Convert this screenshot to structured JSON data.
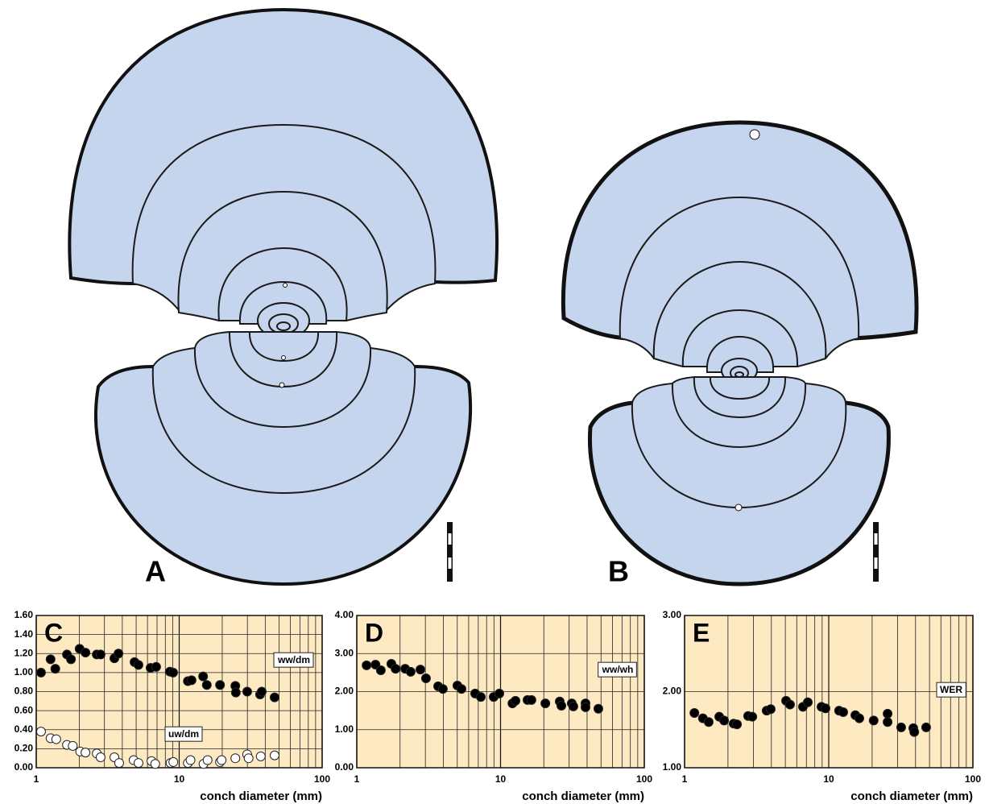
{
  "figure": {
    "panels": [
      {
        "label": "A"
      },
      {
        "label": "B"
      }
    ]
  },
  "chart_data": [
    {
      "type": "scatter",
      "panel_label": "C",
      "x_label": "conch diameter (mm)",
      "log_x": true,
      "grid": true,
      "xlim": [
        1,
        100
      ],
      "xticks": [
        1,
        10,
        100
      ],
      "ylim": [
        0,
        1.6
      ],
      "yticks": [
        {
          "value": 0,
          "label": "0.00"
        },
        {
          "value": 0.2,
          "label": "0.20"
        },
        {
          "value": 0.4,
          "label": "0.40"
        },
        {
          "value": 0.6,
          "label": "0.60"
        },
        {
          "value": 0.8,
          "label": "0.80"
        },
        {
          "value": 1,
          "label": "1.00"
        },
        {
          "value": 1.2,
          "label": "1.20"
        },
        {
          "value": 1.4,
          "label": "1.40"
        },
        {
          "value": 1.6,
          "label": "1.60"
        }
      ],
      "series": [
        {
          "name": "ww/dm",
          "color": "#000000",
          "x": [
            1.08,
            1.26,
            1.36,
            1.64,
            1.75,
            2.01,
            2.21,
            2.65,
            2.82,
            3.52,
            3.76,
            4.87,
            5.19,
            6.31,
            6.9,
            8.61,
            9.07,
            11.5,
            12.2,
            14.7,
            15.6,
            19.3,
            24.7,
            24.9,
            29.9,
            36.8,
            37.8,
            46.5
          ],
          "values": [
            1.0,
            1.14,
            1.04,
            1.19,
            1.14,
            1.25,
            1.21,
            1.19,
            1.19,
            1.15,
            1.2,
            1.11,
            1.08,
            1.05,
            1.06,
            1.01,
            1.0,
            0.91,
            0.92,
            0.96,
            0.87,
            0.87,
            0.86,
            0.79,
            0.8,
            0.77,
            0.8,
            0.74
          ]
        },
        {
          "name": "uw/dm",
          "color": "#ffffff",
          "x": [
            1.08,
            1.26,
            1.38,
            1.64,
            1.8,
            2.03,
            2.21,
            2.65,
            2.82,
            3.52,
            3.8,
            4.8,
            5.19,
            6.4,
            6.8,
            8.7,
            9.1,
            11.5,
            12.0,
            14.8,
            15.8,
            19.3,
            19.8,
            24.7,
            29.9,
            30.6,
            37.2,
            46.5
          ],
          "values": [
            0.38,
            0.31,
            0.3,
            0.24,
            0.23,
            0.17,
            0.16,
            0.15,
            0.11,
            0.11,
            0.05,
            0.08,
            0.05,
            0.07,
            0.04,
            0.05,
            0.06,
            0.05,
            0.08,
            0.04,
            0.08,
            0.06,
            0.08,
            0.1,
            0.14,
            0.1,
            0.12,
            0.13
          ]
        }
      ]
    },
    {
      "type": "scatter",
      "panel_label": "D",
      "x_label": "conch diameter (mm)",
      "log_x": true,
      "grid": true,
      "xlim": [
        1,
        100
      ],
      "xticks": [
        1,
        10,
        100
      ],
      "ylim": [
        0,
        4
      ],
      "yticks": [
        {
          "value": 0,
          "label": "0.00"
        },
        {
          "value": 1,
          "label": "1.00"
        },
        {
          "value": 2,
          "label": "2.00"
        },
        {
          "value": 3,
          "label": "3.00"
        },
        {
          "value": 4,
          "label": "4.00"
        }
      ],
      "series": [
        {
          "name": "ww/wh",
          "color": "#000000",
          "x": [
            1.17,
            1.35,
            1.47,
            1.74,
            1.86,
            2.17,
            2.37,
            2.77,
            3.03,
            3.68,
            3.97,
            5.01,
            5.35,
            6.66,
            7.29,
            8.96,
            9.81,
            12.1,
            12.7,
            15.4,
            16.4,
            20.5,
            25.8,
            26.5,
            31.3,
            32.1,
            39.0,
            39.0,
            47.9
          ],
          "values": [
            2.69,
            2.71,
            2.56,
            2.73,
            2.6,
            2.6,
            2.52,
            2.58,
            2.35,
            2.14,
            2.07,
            2.16,
            2.07,
            1.95,
            1.86,
            1.86,
            1.95,
            1.69,
            1.76,
            1.78,
            1.78,
            1.69,
            1.74,
            1.63,
            1.69,
            1.61,
            1.69,
            1.59,
            1.55
          ]
        }
      ]
    },
    {
      "type": "scatter",
      "panel_label": "E",
      "x_label": "conch diameter (mm)",
      "log_x": true,
      "grid": true,
      "xlim": [
        1,
        100
      ],
      "xticks": [
        1,
        10,
        100
      ],
      "ylim": [
        1,
        3
      ],
      "yticks": [
        {
          "value": 1,
          "label": "1.00"
        },
        {
          "value": 2,
          "label": "2.00"
        },
        {
          "value": 3,
          "label": "3.00"
        }
      ],
      "series": [
        {
          "name": "WER",
          "color": "#000000",
          "x": [
            1.17,
            1.34,
            1.47,
            1.74,
            1.88,
            2.19,
            2.31,
            2.76,
            2.95,
            3.71,
            3.96,
            5.06,
            5.39,
            6.62,
            7.16,
            8.91,
            9.5,
            11.8,
            12.6,
            15.3,
            16.3,
            20.5,
            25.6,
            25.6,
            31.8,
            38.6,
            39.2,
            47.4
          ],
          "values": [
            1.72,
            1.65,
            1.6,
            1.67,
            1.62,
            1.58,
            1.57,
            1.68,
            1.67,
            1.75,
            1.77,
            1.88,
            1.83,
            1.8,
            1.86,
            1.8,
            1.78,
            1.75,
            1.73,
            1.69,
            1.65,
            1.62,
            1.71,
            1.6,
            1.53,
            1.52,
            1.47,
            1.53
          ]
        }
      ]
    }
  ]
}
